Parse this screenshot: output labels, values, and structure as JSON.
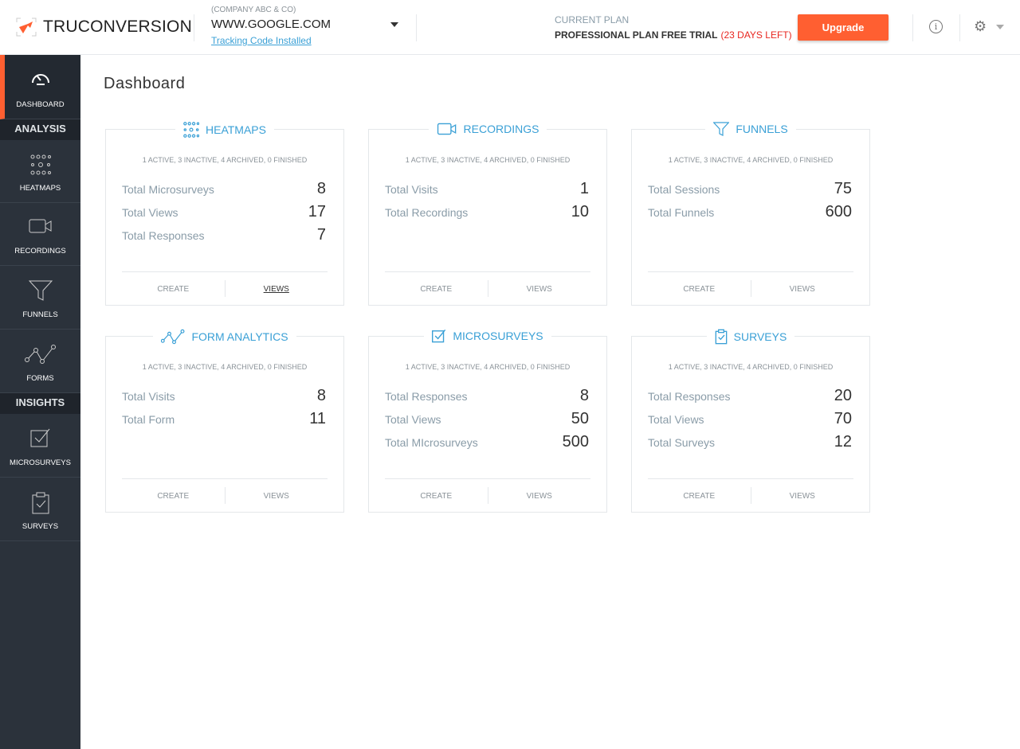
{
  "header": {
    "brand": "TRUCONVERSION",
    "company": "(COMPANY ABC & CO)",
    "site": "WWW.GOOGLE.COM",
    "tracking": "Tracking Code Installed",
    "plan_label": "CURRENT PLAN",
    "plan_name": "PROFESSIONAL PLAN FREE TRIAL",
    "plan_days": "(23 DAYS LEFT)",
    "upgrade": "Upgrade",
    "info_glyph": "i",
    "gear_glyph": "⚙"
  },
  "colors": {
    "accent": "#ff5f31",
    "link": "#3aa0d6",
    "sidebar": "#2b323b",
    "warning": "#e8261f"
  },
  "sidebar": {
    "dashboard": "DASHBOARD",
    "analysis": "ANALYSIS",
    "heatmaps": "HEATMAPS",
    "recordings": "RECORDINGS",
    "funnels": "FUNNELS",
    "forms": "FORMS",
    "insights": "INSIGHTS",
    "microsurveys": "MICROSURVEYS",
    "surveys": "SURVEYS"
  },
  "page_title": "Dashboard",
  "cards": [
    {
      "title": "HEATMAPS",
      "icon": "heatmap-icon",
      "status": "1 ACTIVE, 3 INACTIVE, 4 ARCHIVED, 0 FINISHED",
      "rows": [
        {
          "k": "Total Microsurveys",
          "v": "8"
        },
        {
          "k": "Total Views",
          "v": "17"
        },
        {
          "k": "Total Responses",
          "v": "7"
        }
      ],
      "create": "CREATE",
      "views": "VIEWS"
    },
    {
      "title": "RECORDINGS",
      "icon": "camera-icon",
      "status": "1 ACTIVE, 3 INACTIVE, 4 ARCHIVED, 0 FINISHED",
      "rows": [
        {
          "k": "Total Visits",
          "v": "1"
        },
        {
          "k": "Total Recordings",
          "v": "10"
        }
      ],
      "create": "CREATE",
      "views": "VIEWS"
    },
    {
      "title": "FUNNELS",
      "icon": "funnel-icon",
      "status": "1 ACTIVE, 3 INACTIVE, 4 ARCHIVED, 0 FINISHED",
      "rows": [
        {
          "k": "Total Sessions",
          "v": "75"
        },
        {
          "k": "Total Funnels",
          "v": "600"
        }
      ],
      "create": "CREATE",
      "views": "VIEWS"
    },
    {
      "title": "FORM ANALYTICS",
      "icon": "form-analytics-icon",
      "status": "1 ACTIVE, 3 INACTIVE, 4 ARCHIVED, 0 FINISHED",
      "rows": [
        {
          "k": "Total Visits",
          "v": "8"
        },
        {
          "k": "Total Form",
          "v": "11"
        }
      ],
      "create": "CREATE",
      "views": "VIEWS"
    },
    {
      "title": "MICROSURVEYS",
      "icon": "checkbox-icon",
      "status": "1 ACTIVE, 3 INACTIVE, 4 ARCHIVED, 0 FINISHED",
      "rows": [
        {
          "k": "Total Responses",
          "v": "8"
        },
        {
          "k": "Total Views",
          "v": "50"
        },
        {
          "k": "Total MIcrosurveys",
          "v": "500"
        }
      ],
      "create": "CREATE",
      "views": "VIEWS"
    },
    {
      "title": "SURVEYS",
      "icon": "clipboard-icon",
      "status": "1 ACTIVE, 3 INACTIVE, 4 ARCHIVED, 0 FINISHED",
      "rows": [
        {
          "k": "Total Responses",
          "v": "20"
        },
        {
          "k": "Total Views",
          "v": "70"
        },
        {
          "k": "Total Surveys",
          "v": "12"
        }
      ],
      "create": "CREATE",
      "views": "VIEWS"
    }
  ]
}
